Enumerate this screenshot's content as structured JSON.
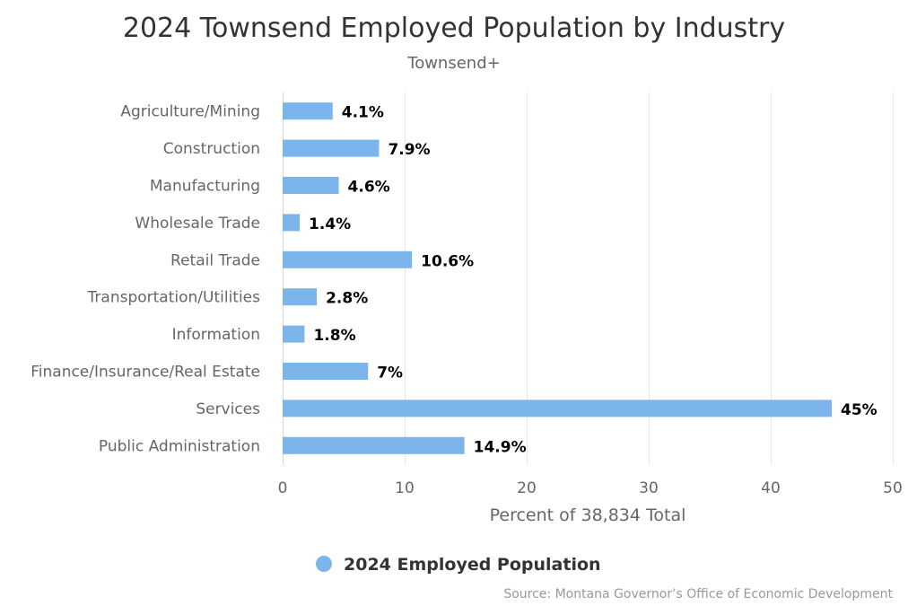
{
  "chart_data": {
    "type": "bar",
    "orientation": "horizontal",
    "title": "2024 Townsend Employed Population by Industry",
    "subtitle": "Townsend+",
    "categories": [
      "Agriculture/Mining",
      "Construction",
      "Manufacturing",
      "Wholesale Trade",
      "Retail Trade",
      "Transportation/Utilities",
      "Information",
      "Finance/Insurance/Real Estate",
      "Services",
      "Public Administration"
    ],
    "series": [
      {
        "name": "2024 Employed Population",
        "values": [
          4.1,
          7.9,
          4.6,
          1.4,
          10.6,
          2.8,
          1.8,
          7,
          45,
          14.9
        ],
        "data_labels": [
          "4.1%",
          "7.9%",
          "4.6%",
          "1.4%",
          "10.6%",
          "2.8%",
          "1.8%",
          "7%",
          "45%",
          "14.9%"
        ],
        "color": "#7cb5ec"
      }
    ],
    "xlabel": "Percent of 38,834 Total",
    "xlim": [
      0,
      50
    ],
    "xticks": [
      0,
      10,
      20,
      30,
      40,
      50
    ],
    "grid": true,
    "legend_position": "bottom-center",
    "credits": "Source: Montana Governor’s Office of Economic Development"
  }
}
